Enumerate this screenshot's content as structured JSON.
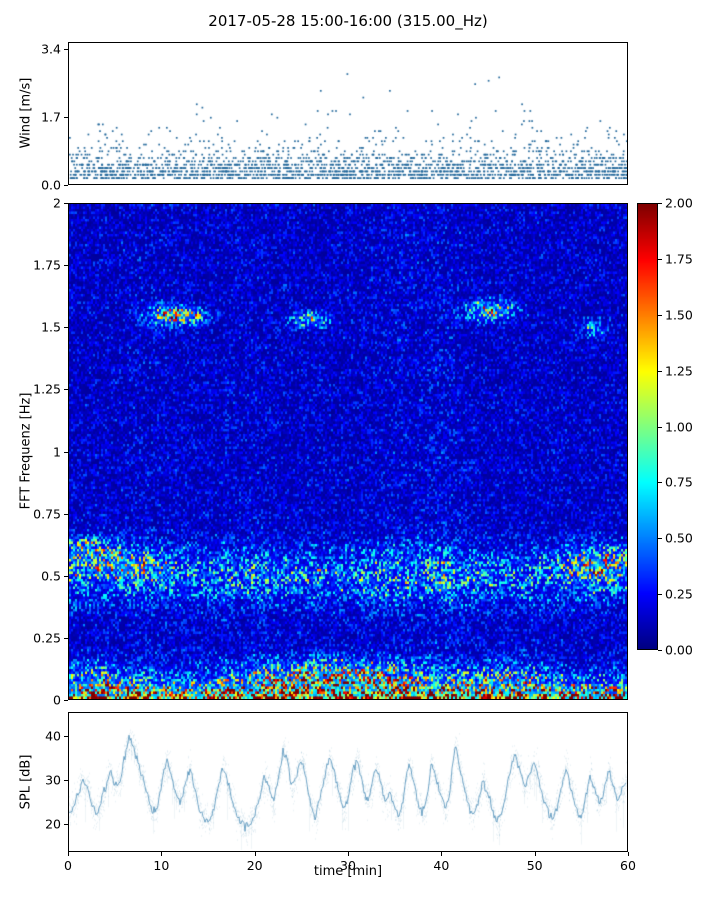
{
  "title": "2017-05-28 15:00-16:00 (315.00_Hz)",
  "colors": {
    "scatter": "#23689b",
    "spl": "#2e7bab",
    "axis": "#000000",
    "background": "#ffffff"
  },
  "chart_data": [
    {
      "id": "wind",
      "type": "scatter",
      "ylabel": "Wind [m/s]",
      "yticks": [
        "0.0",
        "1.7",
        "3.4"
      ],
      "ytick_values": [
        0,
        1.7,
        3.4
      ],
      "ylim": [
        0,
        3.57
      ],
      "xlim": [
        0,
        60
      ],
      "point_count": 2300,
      "y_quantum": 0.085,
      "base_level": 0.15,
      "base_spread": 0.35,
      "spike_prob": 0.055,
      "envelope_x": [
        0,
        5,
        10,
        15,
        20,
        25,
        28,
        30,
        32,
        35,
        38,
        41,
        45,
        48,
        52,
        56,
        60
      ],
      "envelope_max": [
        1.5,
        1.6,
        1.5,
        2.3,
        1.6,
        2.1,
        2.6,
        3.4,
        3.0,
        2.3,
        2.3,
        2.5,
        3.2,
        2.3,
        1.4,
        1.7,
        1.7
      ]
    },
    {
      "id": "spectrogram",
      "type": "heatmap",
      "ylabel": "FFT Frequenz [Hz]",
      "ylim": [
        0,
        2
      ],
      "xlim": [
        0,
        60
      ],
      "yticks": [
        "2",
        "1.75",
        "1.5",
        "1.25",
        "1",
        "0.75",
        "0.5",
        "0.25",
        "0"
      ],
      "ytick_values": [
        2,
        1.75,
        1.5,
        1.25,
        1,
        0.75,
        0.5,
        0.25,
        0
      ],
      "colormap": "jet",
      "clim": [
        0,
        2
      ],
      "colorbar_ticks": [
        "2.00",
        "1.75",
        "1.50",
        "1.25",
        "1.00",
        "0.75",
        "0.50",
        "0.25",
        "0.00"
      ],
      "colorbar_tick_values": [
        2,
        1.75,
        1.5,
        1.25,
        1,
        0.75,
        0.5,
        0.25,
        0
      ],
      "profile": {
        "low_amp": 2.0,
        "low_scale": 0.045,
        "band_center": 0.5,
        "band_sigma": 0.08,
        "band_amp": 0.35,
        "floor": 0.18
      },
      "yellow_band": {
        "center_f": 0.08,
        "sigma_f": 0.05,
        "bumps": [
          {
            "x": 3,
            "amp": 0.35,
            "sx": 2
          },
          {
            "x": 28,
            "amp": 0.8,
            "sx": 6
          },
          {
            "x": 47,
            "amp": 0.35,
            "sx": 3
          }
        ]
      },
      "blobs": [
        {
          "x": 11.5,
          "f": 1.55,
          "sx": 1.8,
          "sf": 0.025,
          "amp": 1.1
        },
        {
          "x": 26,
          "f": 1.53,
          "sx": 1.2,
          "sf": 0.02,
          "amp": 0.7
        },
        {
          "x": 45.5,
          "f": 1.57,
          "sx": 1.6,
          "sf": 0.025,
          "amp": 0.95
        },
        {
          "x": 56.5,
          "f": 1.5,
          "sx": 0.9,
          "sf": 0.02,
          "amp": 0.55
        },
        {
          "x": 5,
          "f": 0.55,
          "sx": 3,
          "sf": 0.04,
          "amp": 0.5
        },
        {
          "x": 57,
          "f": 0.55,
          "sx": 2.5,
          "sf": 0.05,
          "amp": 0.55
        },
        {
          "x": 2,
          "f": 0.62,
          "sx": 2,
          "sf": 0.03,
          "amp": 0.4
        }
      ],
      "col_bumps": [
        {
          "x": 36,
          "amp": 0.15,
          "sx": 3
        },
        {
          "x": 41,
          "amp": 0.18,
          "sx": 1.5
        },
        {
          "x": 20,
          "amp": 0.1,
          "sx": 2
        },
        {
          "x": 9,
          "amp": 0.08,
          "sx": 2
        }
      ]
    },
    {
      "id": "spl",
      "type": "line",
      "ylabel": "SPL [dB]",
      "xlabel": "time [min]",
      "yticks": [
        "40",
        "30",
        "20"
      ],
      "ytick_values": [
        40,
        30,
        20
      ],
      "ylim": [
        13.5,
        45.5
      ],
      "xlim": [
        0,
        60
      ],
      "xticks": [
        "0",
        "10",
        "20",
        "30",
        "40",
        "50",
        "60"
      ],
      "xtick_values": [
        0,
        10,
        20,
        30,
        40,
        50,
        60
      ],
      "x_step_min": 0.5,
      "values": [
        22,
        24,
        27,
        30,
        28,
        24,
        22,
        25,
        29,
        32,
        28,
        30,
        35,
        40,
        37,
        33,
        30,
        26,
        22,
        24,
        30,
        35,
        31,
        27,
        25,
        29,
        33,
        28,
        23,
        21,
        20,
        23,
        28,
        33,
        30,
        26,
        22,
        20,
        19,
        20,
        22,
        26,
        31,
        28,
        25,
        30,
        37,
        34,
        28,
        31,
        35,
        30,
        24,
        21,
        26,
        31,
        35,
        32,
        27,
        23,
        26,
        32,
        35,
        30,
        25,
        28,
        33,
        29,
        25,
        27,
        24,
        21,
        27,
        34,
        30,
        25,
        22,
        26,
        34,
        30,
        26,
        23,
        28,
        38,
        33,
        28,
        24,
        22,
        25,
        30,
        27,
        23,
        20,
        22,
        27,
        33,
        36,
        32,
        28,
        31,
        34,
        30,
        26,
        23,
        21,
        24,
        29,
        33,
        28,
        24,
        21,
        25,
        31,
        28,
        24,
        27,
        32,
        29,
        25,
        28,
        30
      ]
    }
  ]
}
